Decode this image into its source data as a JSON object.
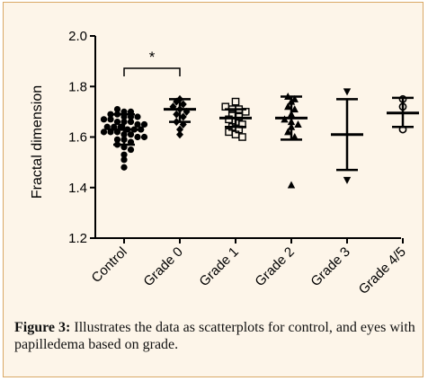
{
  "chart_data": {
    "type": "scatter",
    "title": "",
    "xlabel": "",
    "ylabel": "Fractal dimension",
    "ylim": [
      1.2,
      2.0
    ],
    "yticks": [
      "1.2",
      "1.4",
      "1.6",
      "1.8",
      "2.0"
    ],
    "grid": false,
    "categories": [
      "Control",
      "Grade 0",
      "Grade 1",
      "Grade 2",
      "Grade 3",
      "Grade 4/5"
    ],
    "series": [
      {
        "category": "Control",
        "marker": "circle-filled",
        "mean": 1.63,
        "sd_low": 1.57,
        "sd_high": 1.69,
        "values": [
          1.71,
          1.7,
          1.7,
          1.69,
          1.69,
          1.68,
          1.68,
          1.68,
          1.67,
          1.67,
          1.66,
          1.66,
          1.66,
          1.65,
          1.65,
          1.64,
          1.64,
          1.64,
          1.63,
          1.63,
          1.63,
          1.62,
          1.62,
          1.62,
          1.61,
          1.61,
          1.6,
          1.6,
          1.59,
          1.59,
          1.58,
          1.57,
          1.56,
          1.55,
          1.53,
          1.51,
          1.48
        ]
      },
      {
        "category": "Grade 0",
        "marker": "diamond-filled",
        "mean": 1.71,
        "sd_low": 1.66,
        "sd_high": 1.75,
        "values": [
          1.75,
          1.74,
          1.73,
          1.72,
          1.71,
          1.7,
          1.69,
          1.68,
          1.66,
          1.65,
          1.63,
          1.61
        ]
      },
      {
        "category": "Grade 1",
        "marker": "square-open",
        "mean": 1.675,
        "sd_low": 1.64,
        "sd_high": 1.71,
        "values": [
          1.74,
          1.72,
          1.71,
          1.71,
          1.7,
          1.69,
          1.68,
          1.67,
          1.66,
          1.65,
          1.64,
          1.63,
          1.62,
          1.61,
          1.6
        ]
      },
      {
        "category": "Grade 2",
        "marker": "triangle-filled",
        "mean": 1.675,
        "sd_low": 1.59,
        "sd_high": 1.76,
        "values": [
          1.76,
          1.75,
          1.74,
          1.72,
          1.71,
          1.69,
          1.67,
          1.66,
          1.65,
          1.64,
          1.62,
          1.6,
          1.41
        ]
      },
      {
        "category": "Grade 3",
        "marker": "triangle-down-filled",
        "mean": 1.61,
        "sd_low": 1.47,
        "sd_high": 1.75,
        "values": [
          1.78,
          1.43
        ]
      },
      {
        "category": "Grade 4/5",
        "marker": "circle-open",
        "mean": 1.695,
        "sd_low": 1.64,
        "sd_high": 1.755,
        "values": [
          1.75,
          1.72,
          1.63
        ]
      }
    ],
    "annotations": [
      {
        "text": "*",
        "from": "Control",
        "to": "Grade 0"
      }
    ]
  },
  "caption": {
    "label": "Figure 3:",
    "text": " Illustrates the data as scatterplots for control, and eyes with papilledema based on grade."
  }
}
